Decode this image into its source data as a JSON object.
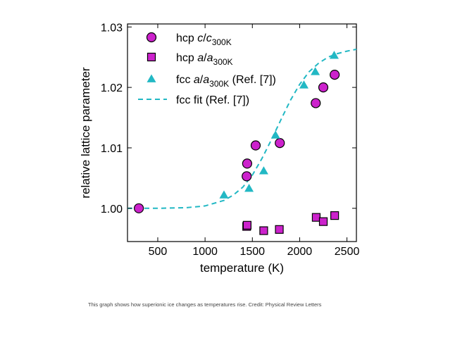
{
  "chart_data": {
    "type": "scatter",
    "xlabel": "temperature (K)",
    "ylabel": "relative lattice parameter",
    "xlim": [
      180,
      2600
    ],
    "ylim": [
      0.9945,
      1.0305
    ],
    "xticks": [
      500,
      1000,
      1500,
      2000,
      2500
    ],
    "xtick_labels": [
      "500",
      "1000",
      "1500",
      "2000",
      "2500"
    ],
    "yticks": [
      1.0,
      1.01,
      1.02,
      1.03
    ],
    "ytick_labels": [
      "1.00",
      "1.01",
      "1.02",
      "1.03"
    ],
    "grid": false,
    "legend_position": "top-left",
    "series": [
      {
        "name_main": "hcp ",
        "name_italic": "c",
        "name_slash": "/",
        "name_italic2": "c",
        "name_sub": "300K",
        "name_suffix": "",
        "marker": "circle",
        "color": "#cc22cc",
        "x": [
          300,
          1440,
          1445,
          1535,
          1790,
          2170,
          2250,
          2370
        ],
        "y": [
          1.0,
          1.0053,
          1.0074,
          1.0104,
          1.0108,
          1.0174,
          1.02,
          1.0221
        ]
      },
      {
        "name_main": "hcp ",
        "name_italic": "a",
        "name_slash": "/",
        "name_italic2": "a",
        "name_sub": "300K",
        "name_suffix": "",
        "marker": "square",
        "color": "#cc22cc",
        "x": [
          1440,
          1445,
          1620,
          1785,
          2175,
          2250,
          2370
        ],
        "y": [
          0.997,
          0.9972,
          0.9963,
          0.9965,
          0.9985,
          0.9978,
          0.9988
        ]
      },
      {
        "name_main": "fcc ",
        "name_italic": "a",
        "name_slash": "/",
        "name_italic2": "a",
        "name_sub": "300K",
        "name_suffix": " (Ref. [7])",
        "marker": "triangle",
        "color": "#22b8c4",
        "x": [
          1200,
          1465,
          1620,
          1745,
          2045,
          2165,
          2365
        ],
        "y": [
          1.0022,
          1.0033,
          1.0062,
          1.0121,
          1.0204,
          1.0226,
          1.0253
        ]
      },
      {
        "name_main": "fcc fit ",
        "name_suffix": "(Ref. [7])",
        "marker": "dashed-line",
        "color": "#22b8c4",
        "x": [
          180,
          500,
          800,
          1000,
          1200,
          1300,
          1400,
          1500,
          1600,
          1700,
          1800,
          1900,
          2000,
          2100,
          2200,
          2300,
          2400,
          2500,
          2600
        ],
        "y": [
          1.0,
          1.0,
          1.0001,
          1.0004,
          1.0013,
          1.0022,
          1.0035,
          1.0055,
          1.0082,
          1.0113,
          1.0146,
          1.0178,
          1.0205,
          1.0226,
          1.024,
          1.025,
          1.0256,
          1.026,
          1.0263
        ]
      }
    ]
  },
  "caption": "This graph shows how superionic ice changes as temperatures rise. Credit: Physical Review Letters"
}
